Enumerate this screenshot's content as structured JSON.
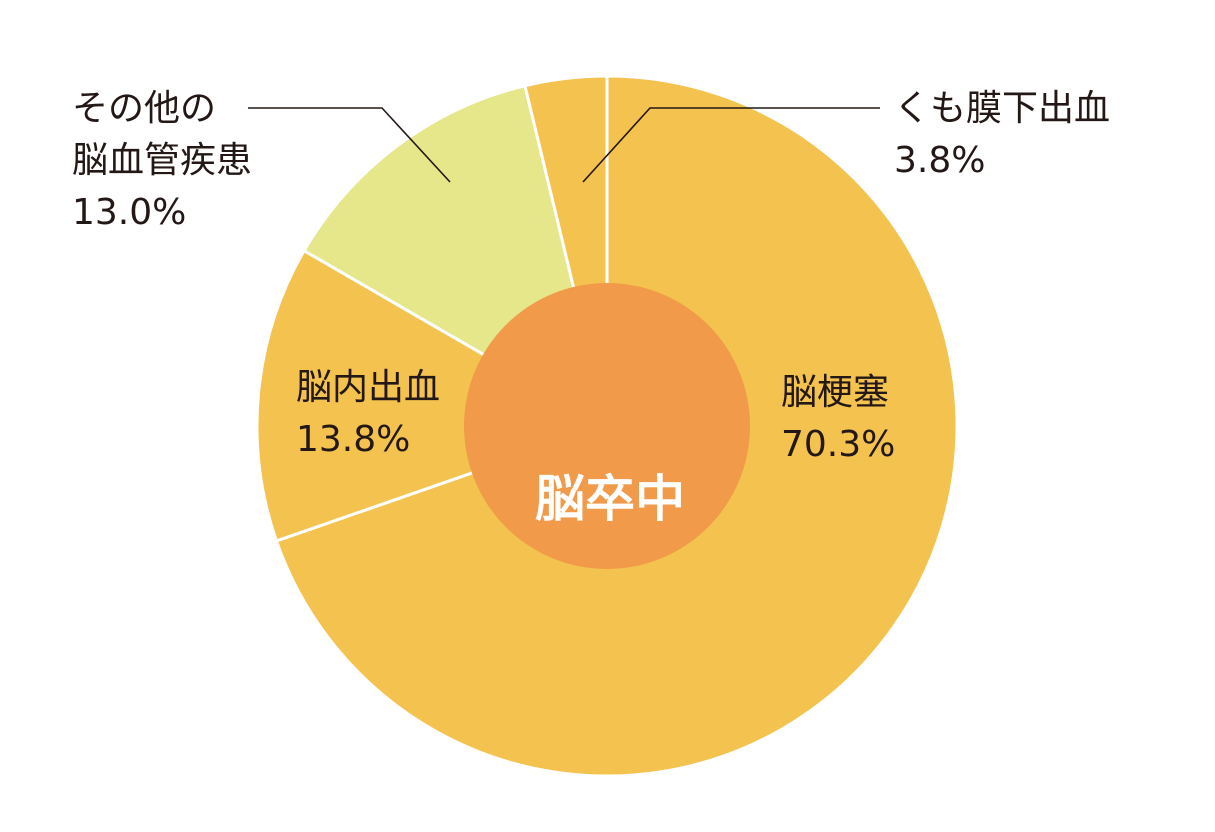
{
  "chart_data": {
    "type": "pie",
    "center_label": "脳卒中",
    "slices": [
      {
        "name": "脳梗塞",
        "value": 70.3,
        "value_label": "70.3%",
        "color": "#F4C24F"
      },
      {
        "name": "脳内出血",
        "value": 13.8,
        "value_label": "13.8%",
        "color": "#F4C24F"
      },
      {
        "name_lines": [
          "その他の",
          "脳血管疾患"
        ],
        "value": 13.0,
        "value_label": "13.0%",
        "color": "#E6E68A"
      },
      {
        "name": "くも膜下出血",
        "value": 3.8,
        "value_label": "3.8%",
        "color": "#F4C24F"
      }
    ],
    "inner_color": "#F19A4A"
  }
}
